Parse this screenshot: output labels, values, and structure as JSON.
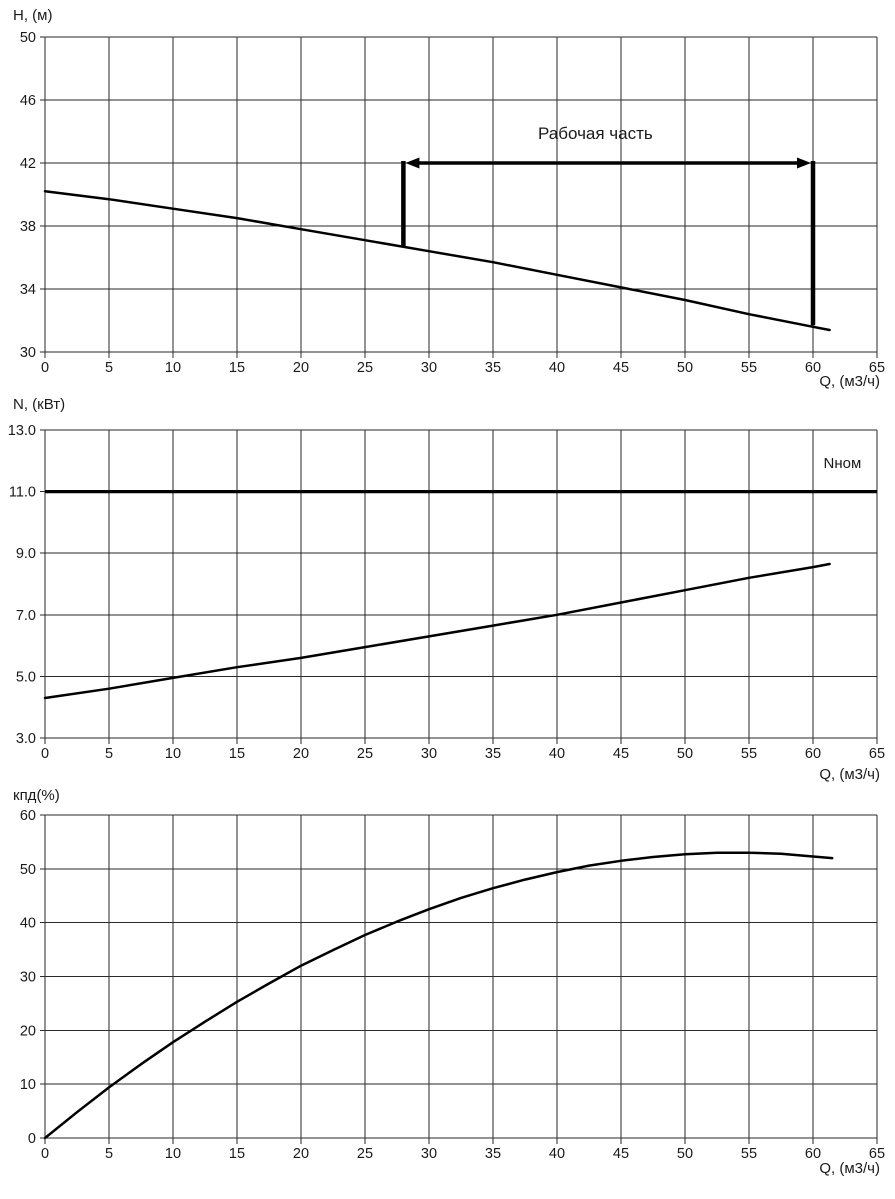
{
  "colors": {
    "background": "#ffffff",
    "curve": "#000000",
    "grid": "#2a2a2a",
    "text": "#1a1a1a",
    "annotation": "#000000"
  },
  "chart_data": [
    {
      "type": "line",
      "title": "",
      "ylabel": "H, (м)",
      "xlabel": "Q, (м3/ч)",
      "xlim": [
        0,
        65
      ],
      "ylim": [
        30,
        50
      ],
      "grid": true,
      "legend_position": "none",
      "xticks": [
        "0",
        "5",
        "10",
        "15",
        "20",
        "25",
        "30",
        "35",
        "40",
        "45",
        "50",
        "55",
        "60",
        "65"
      ],
      "yticks": [
        "50",
        "46",
        "42",
        "38",
        "34",
        "30"
      ],
      "series": [
        {
          "name": "head-curve",
          "x": [
            0,
            5,
            10,
            15,
            20,
            25,
            30,
            35,
            40,
            45,
            50,
            55,
            60,
            61.3
          ],
          "y": [
            40.2,
            39.7,
            39.1,
            38.5,
            37.8,
            37.1,
            36.4,
            35.7,
            34.9,
            34.1,
            33.3,
            32.4,
            31.6,
            31.4
          ]
        }
      ],
      "working_range": {
        "label": "Рабочая часть",
        "q_start": 28,
        "q_end": 60,
        "h_level": 42,
        "h_start_bottom": 36.7,
        "h_end_bottom": 31.7,
        "label_pos": {
          "q": 43,
          "h": 43.8
        }
      }
    },
    {
      "type": "line",
      "title": "",
      "ylabel": "N, (кВт)",
      "xlabel": "Q, (м3/ч)",
      "xlim": [
        0,
        65
      ],
      "ylim": [
        3.0,
        13.0
      ],
      "grid": true,
      "legend_position": "none",
      "xticks": [
        "0",
        "5",
        "10",
        "15",
        "20",
        "25",
        "30",
        "35",
        "40",
        "45",
        "50",
        "55",
        "60",
        "65"
      ],
      "yticks": [
        "13.0",
        "11.0",
        "9.0",
        "7.0",
        "5.0",
        "3.0"
      ],
      "series": [
        {
          "name": "power-curve",
          "x": [
            0,
            5,
            10,
            15,
            20,
            25,
            30,
            35,
            40,
            45,
            50,
            55,
            60,
            61.3
          ],
          "y": [
            4.3,
            4.6,
            4.95,
            5.3,
            5.6,
            5.95,
            6.3,
            6.65,
            7.0,
            7.4,
            7.8,
            8.2,
            8.55,
            8.65
          ]
        }
      ],
      "nominal_line": {
        "label": "Nном",
        "value": 11.0,
        "label_pos": {
          "q": 62.3,
          "n": 11.9
        }
      }
    },
    {
      "type": "line",
      "title": "",
      "ylabel": "кпд(%)",
      "xlabel": "Q, (м3/ч)",
      "xlim": [
        0,
        65
      ],
      "ylim": [
        0,
        60
      ],
      "grid": true,
      "legend_position": "none",
      "xticks": [
        "0",
        "5",
        "10",
        "15",
        "20",
        "25",
        "30",
        "35",
        "40",
        "45",
        "50",
        "55",
        "60",
        "65"
      ],
      "yticks": [
        "60",
        "50",
        "40",
        "30",
        "20",
        "10",
        "0"
      ],
      "series": [
        {
          "name": "efficiency-curve",
          "x": [
            0,
            2.5,
            5,
            7.5,
            10,
            12.5,
            15,
            17.5,
            20,
            22.5,
            25,
            27.5,
            30,
            32.5,
            35,
            37.5,
            40,
            42.5,
            45,
            47.5,
            50,
            52.5,
            55,
            57.5,
            60,
            61.5
          ],
          "y": [
            0,
            4.8,
            9.4,
            13.7,
            17.8,
            21.6,
            25.3,
            28.7,
            32.0,
            34.9,
            37.7,
            40.2,
            42.5,
            44.6,
            46.4,
            48.0,
            49.4,
            50.6,
            51.5,
            52.2,
            52.7,
            53.0,
            53.0,
            52.8,
            52.3,
            52.0
          ]
        }
      ]
    }
  ]
}
